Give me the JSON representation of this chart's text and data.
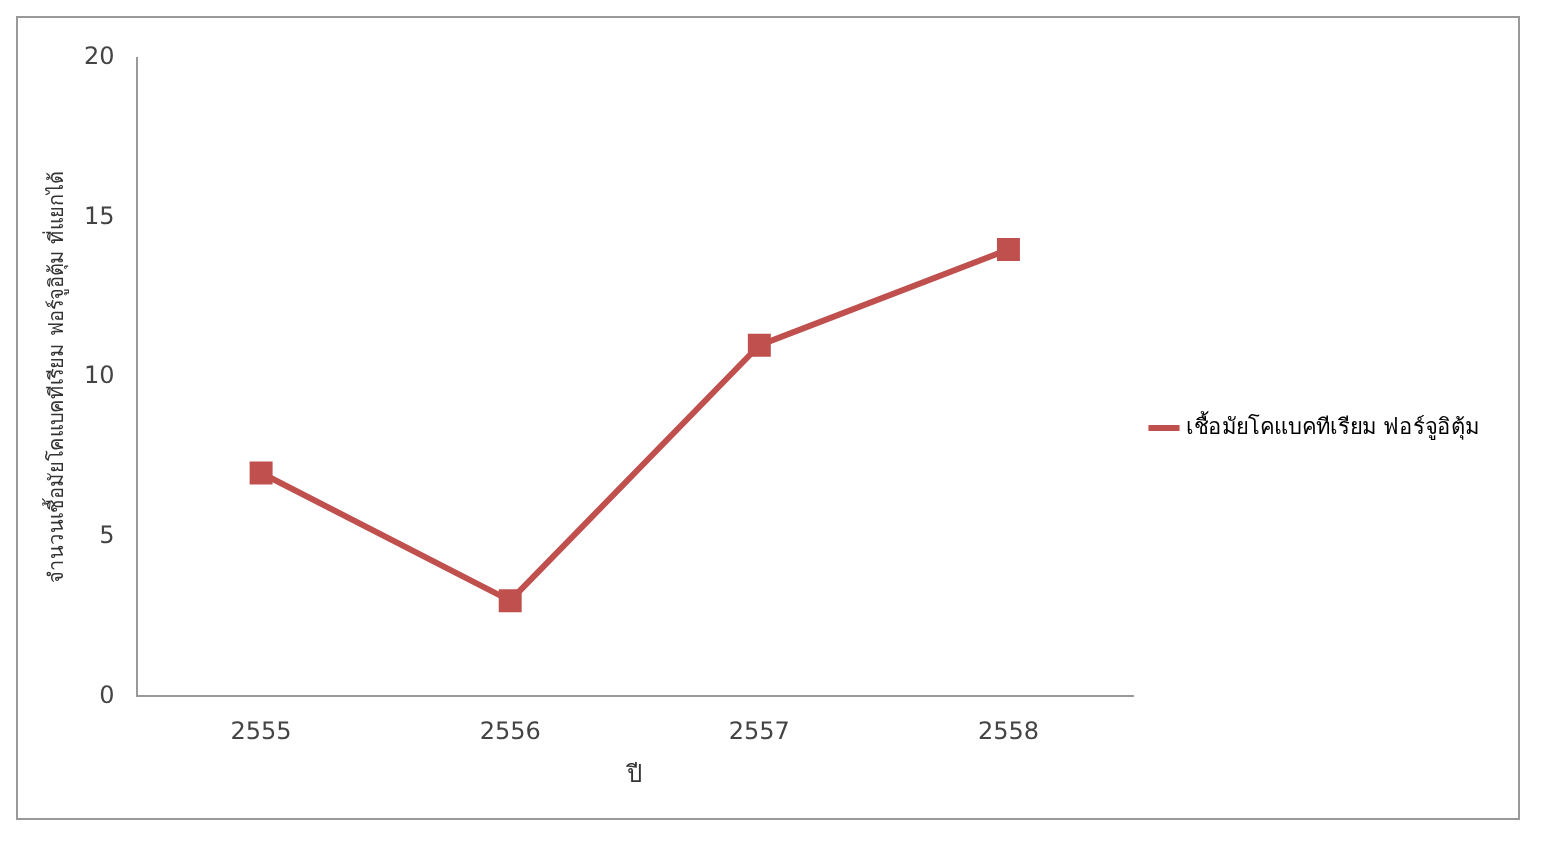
{
  "chart_data": {
    "type": "line",
    "xlabel": "ปี",
    "ylabel": "จำนวนเชื้อมัยโคแบคทีเรียม ฟอร์จูอิตุ้ม ที่แยกได้",
    "categories": [
      "2555",
      "2556",
      "2557",
      "2558"
    ],
    "series": [
      {
        "name": "เชื้อมัยโคแบคทีเรียม ฟอร์จูอิตุ้ม",
        "color": "#c0504d",
        "values": [
          7,
          3,
          11,
          14
        ]
      }
    ],
    "ylim": [
      0,
      20
    ],
    "yticks": [
      0,
      5,
      10,
      15,
      20
    ],
    "grid": false,
    "legend": "right",
    "marker": "square"
  }
}
